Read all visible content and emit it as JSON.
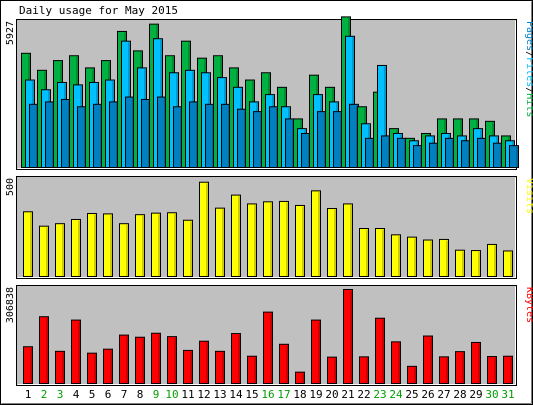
{
  "chart_data": {
    "title": "Daily usage for May 2015",
    "type": "bar",
    "days": [
      "1",
      "2",
      "3",
      "4",
      "5",
      "6",
      "7",
      "8",
      "9",
      "10",
      "11",
      "12",
      "13",
      "14",
      "15",
      "16",
      "17",
      "18",
      "19",
      "20",
      "21",
      "22",
      "23",
      "24",
      "25",
      "26",
      "27",
      "28",
      "29",
      "30",
      "31"
    ],
    "weekend_days": [
      2,
      3,
      9,
      10,
      16,
      17,
      23,
      24,
      30,
      31
    ],
    "colors": {
      "hits": "#00b040",
      "files": "#00c0ff",
      "pages": "#0080c0",
      "visits": "#ffff00",
      "kbytes": "#ff0000",
      "weekday_label": "#000000",
      "weekend_label": "#00a000"
    },
    "panels": [
      {
        "id": "traffic",
        "ymax_label": "5927",
        "ymax": 5927,
        "legend": [
          {
            "text": "Pages",
            "color": "#0080c0"
          },
          {
            "text": "Files",
            "color": "#00c0ff"
          },
          {
            "text": "Hits",
            "color": "#00b040"
          }
        ],
        "legend_sep": "/",
        "series": [
          {
            "name": "Hits",
            "color": "#00b040",
            "values": [
              4700,
              4000,
              4400,
              4600,
              4100,
              4400,
              5600,
              4800,
              5900,
              4600,
              5200,
              4500,
              4600,
              4100,
              3600,
              3900,
              3300,
              2000,
              3800,
              3300,
              6200,
              2500,
              3100,
              1600,
              1200,
              1400,
              2000,
              2000,
              2000,
              1900,
              1300
            ]
          },
          {
            "name": "Files",
            "color": "#00c0ff",
            "values": [
              3600,
              3200,
              3500,
              3400,
              3500,
              3600,
              5200,
              4100,
              5300,
              3900,
              4000,
              3900,
              3700,
              3300,
              2700,
              3000,
              2500,
              1600,
              3000,
              2700,
              5400,
              1800,
              4200,
              1400,
              1100,
              1300,
              1400,
              1300,
              1600,
              1300,
              1100
            ]
          },
          {
            "name": "Pages",
            "color": "#0080c0",
            "values": [
              2600,
              2700,
              2800,
              2500,
              2600,
              2700,
              2900,
              2800,
              2900,
              2500,
              2700,
              2600,
              2600,
              2400,
              2300,
              2500,
              2000,
              1400,
              2300,
              2300,
              2600,
              1200,
              1300,
              1200,
              900,
              1000,
              1200,
              1100,
              1200,
              1000,
              900
            ]
          }
        ]
      },
      {
        "id": "visits",
        "ymax_label": "500",
        "ymax": 500,
        "legend": [
          {
            "text": "Visits",
            "color": "#ffff00"
          }
        ],
        "series": [
          {
            "name": "Visits",
            "color": "#ffff00",
            "values": [
              337,
              262,
              275,
              297,
              328,
              326,
              275,
              322,
              330,
              332,
              293,
              491,
              356,
              424,
              378,
              389,
              391,
              370,
              446,
              354,
              378,
              250,
              250,
              217,
              205,
              190,
              193,
              137,
              135,
              167,
              133
            ]
          }
        ]
      },
      {
        "id": "kbytes",
        "ymax_label": "306838",
        "ymax": 306838,
        "legend": [
          {
            "text": "KBytes",
            "color": "#ff0000"
          }
        ],
        "series": [
          {
            "name": "KBytes",
            "color": "#ff0000",
            "values": [
              120000,
              218000,
              105000,
              207000,
              99000,
              112000,
              158000,
              151000,
              164000,
              153000,
              108000,
              138000,
              105000,
              163000,
              89000,
              233000,
              128000,
              37000,
              207000,
              86000,
              306838,
              87000,
              213000,
              136000,
              56000,
              155000,
              87000,
              104000,
              134000,
              88000,
              89000
            ]
          }
        ]
      }
    ]
  }
}
